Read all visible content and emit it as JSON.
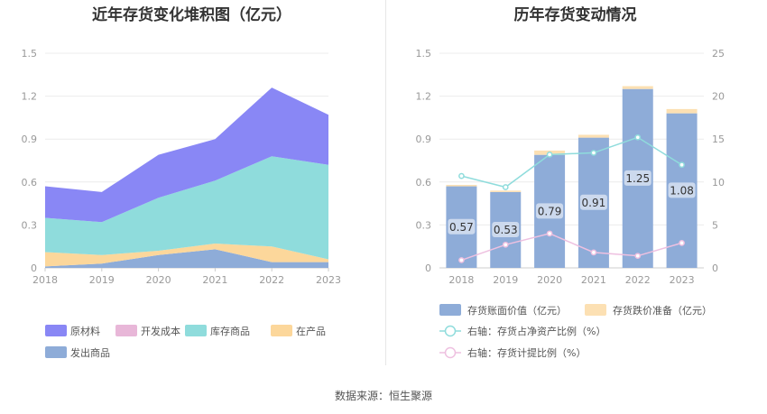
{
  "source_text": "数据来源：恒生聚源",
  "chart_data": [
    {
      "type": "area",
      "stacked": true,
      "title": "近年存货变化堆积图（亿元）",
      "x": [
        "2018",
        "2019",
        "2020",
        "2021",
        "2022",
        "2023"
      ],
      "ylim": [
        0,
        1.5
      ],
      "yticks": [
        "0",
        "0.3",
        "0.6",
        "0.9",
        "1.2",
        "1.5"
      ],
      "grid": true,
      "series": [
        {
          "name": "发出商品",
          "color": "#8eacd8",
          "values": [
            0.01,
            0.03,
            0.09,
            0.13,
            0.04,
            0.04
          ]
        },
        {
          "name": "在产品",
          "color": "#fcd79b",
          "values": [
            0.1,
            0.06,
            0.03,
            0.04,
            0.11,
            0.02
          ]
        },
        {
          "name": "开发成本",
          "color": "#e8b7d8",
          "values": [
            0,
            0,
            0,
            0,
            0,
            0
          ]
        },
        {
          "name": "库存商品",
          "color": "#8fdcdc",
          "values": [
            0.24,
            0.23,
            0.37,
            0.44,
            0.63,
            0.66
          ]
        },
        {
          "name": "原材料",
          "color": "#8987f5",
          "values": [
            0.22,
            0.21,
            0.3,
            0.29,
            0.48,
            0.35
          ]
        }
      ],
      "legend_order": [
        "原材料",
        "开发成本",
        "库存商品",
        "在产品",
        "发出商品"
      ]
    },
    {
      "type": "bar",
      "title": "历年存货变动情况",
      "x": [
        "2018",
        "2019",
        "2020",
        "2021",
        "2022",
        "2023"
      ],
      "ylim": [
        0,
        1.5
      ],
      "yticks": [
        "0",
        "0.3",
        "0.6",
        "0.9",
        "1.2",
        "1.5"
      ],
      "y2lim": [
        0,
        25
      ],
      "y2ticks": [
        "0",
        "5",
        "10",
        "15",
        "20",
        "25"
      ],
      "grid": true,
      "bars": {
        "name": "存货账面价值（亿元）",
        "color": "#8eacd8",
        "values": [
          0.57,
          0.53,
          0.79,
          0.91,
          1.25,
          1.08
        ],
        "labels": [
          "0.57",
          "0.53",
          "0.79",
          "0.91",
          "1.25",
          "1.08"
        ]
      },
      "bars_stack": {
        "name": "存货跌价准备（亿元）",
        "color": "#fce0b3",
        "values": [
          0.01,
          0.01,
          0.03,
          0.02,
          0.02,
          0.03
        ]
      },
      "lines": [
        {
          "name": "右轴：存货占净资产比例（%）",
          "color": "#8fdcdc",
          "axis": "right",
          "values": [
            10.7,
            9.4,
            13.2,
            13.4,
            15.2,
            12.0
          ]
        },
        {
          "name": "右轴：存货计提比例（%）",
          "color": "#eec0e0",
          "axis": "right",
          "values": [
            0.9,
            2.7,
            4.0,
            1.8,
            1.4,
            2.9
          ]
        }
      ]
    }
  ]
}
